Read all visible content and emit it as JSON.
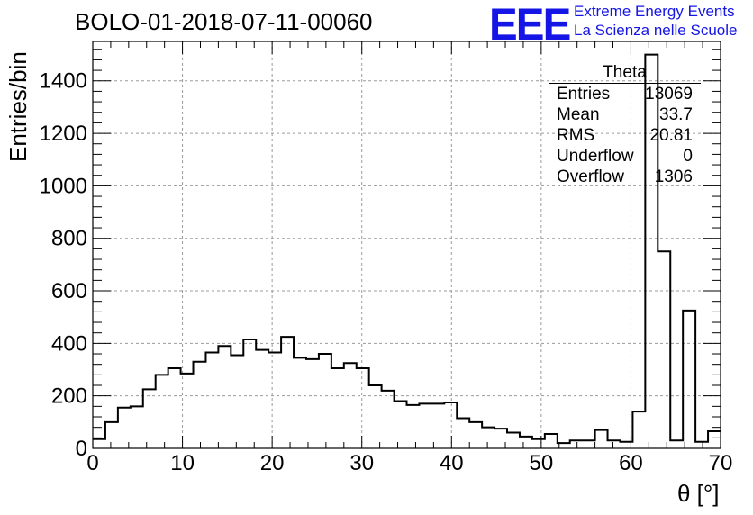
{
  "header": {
    "title": "BOLO-01-2018-07-11-00060",
    "logo": "EEE",
    "logo_line1": "Extreme Energy Events",
    "logo_line2": "La Scienza nelle Scuole",
    "logo_color": "#1515e6"
  },
  "stats_box": {
    "title": "Theta",
    "rows": [
      {
        "label": "Entries",
        "value": "13069"
      },
      {
        "label": "Mean",
        "value": "33.7"
      },
      {
        "label": "RMS",
        "value": "20.81"
      },
      {
        "label": "Underflow",
        "value": "0"
      },
      {
        "label": "Overflow",
        "value": "1306"
      }
    ]
  },
  "chart_data": {
    "type": "bar",
    "style": "histogram-step",
    "xlabel": "θ [°]",
    "ylabel": "Entries/bin",
    "xlim": [
      0,
      70
    ],
    "ylim": [
      0,
      1550
    ],
    "grid": true,
    "bin_width": 1.4,
    "x_ticks": [
      0,
      10,
      20,
      30,
      40,
      50,
      60,
      70
    ],
    "y_ticks": [
      0,
      200,
      400,
      600,
      800,
      1000,
      1200,
      1400
    ],
    "values": [
      35,
      100,
      155,
      160,
      225,
      280,
      305,
      285,
      330,
      365,
      390,
      355,
      415,
      375,
      365,
      425,
      345,
      340,
      360,
      305,
      325,
      305,
      240,
      220,
      180,
      165,
      170,
      170,
      175,
      115,
      100,
      80,
      75,
      60,
      45,
      35,
      55,
      20,
      30,
      30,
      70,
      30,
      25,
      140,
      1500,
      750,
      30,
      525,
      25,
      65
    ]
  }
}
